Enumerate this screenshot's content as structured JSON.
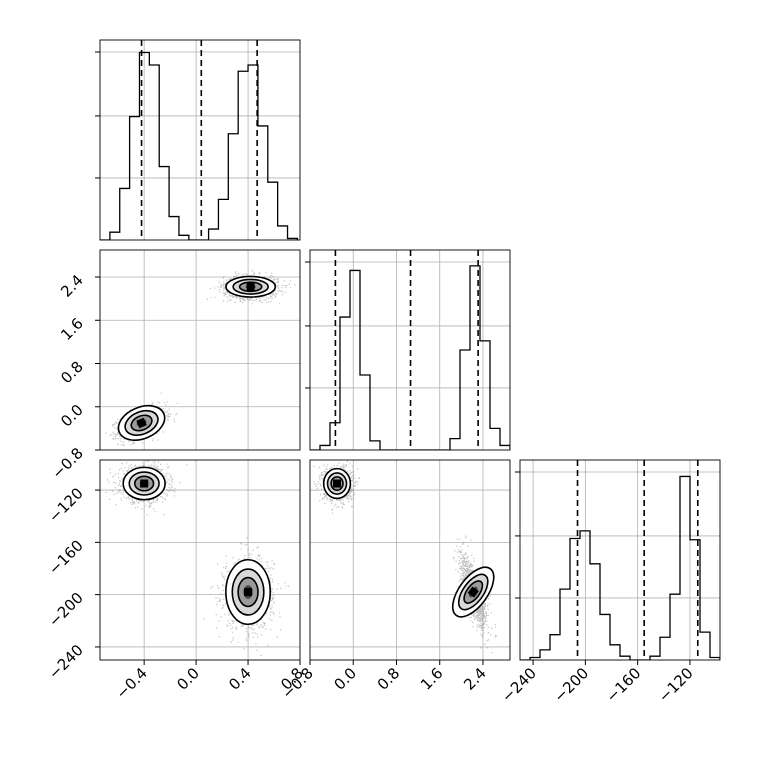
{
  "chart_data": {
    "type": "corner",
    "parameters": [
      {
        "ticks": [
          -0.4,
          0.0,
          0.4,
          0.8
        ],
        "tick_labels": [
          "−0.4",
          "0.0",
          "0.4",
          "0.8"
        ],
        "range": [
          -0.74,
          0.8
        ]
      },
      {
        "ticks": [
          -0.8,
          0.0,
          0.8,
          1.6,
          2.4
        ],
        "tick_labels": [
          "−0.8",
          "0.0",
          "0.8",
          "1.6",
          "2.4"
        ],
        "range": [
          -0.8,
          2.9
        ]
      },
      {
        "ticks": [
          -240,
          -200,
          -160,
          -120
        ],
        "tick_labels": [
          "−240",
          "−200",
          "−160",
          "−120"
        ],
        "range": [
          -250,
          -97
        ]
      }
    ],
    "histograms": [
      {
        "param": 0,
        "edges": [
          -0.74,
          -0.664,
          -0.588,
          -0.512,
          -0.436,
          -0.36,
          -0.284,
          -0.208,
          -0.132,
          -0.056,
          0.02,
          0.096,
          0.172,
          0.248,
          0.324,
          0.4,
          0.476,
          0.552,
          0.628,
          0.704,
          0.78
        ],
        "counts": [
          0,
          5,
          33,
          79,
          120,
          112,
          47,
          15,
          3,
          0,
          0,
          7,
          26,
          68,
          108,
          112,
          73,
          37,
          9,
          1
        ],
        "quantiles": [
          -0.42,
          0.04,
          0.47
        ],
        "ymax": 128
      },
      {
        "param": 1,
        "edges": [
          -0.8,
          -0.615,
          -0.43,
          -0.245,
          -0.06,
          0.125,
          0.31,
          0.495,
          0.68,
          0.865,
          1.05,
          1.235,
          1.42,
          1.605,
          1.79,
          1.975,
          2.16,
          2.345,
          2.53,
          2.715,
          2.9
        ],
        "counts": [
          0,
          4,
          24,
          117,
          158,
          66,
          8,
          0,
          0,
          0,
          0,
          0,
          0,
          0,
          10,
          88,
          162,
          96,
          19,
          4
        ],
        "quantiles": [
          -0.33,
          1.06,
          2.31
        ],
        "ymax": 176
      },
      {
        "param": 2,
        "edges": [
          -250,
          -242.35,
          -234.7,
          -227.05,
          -219.4,
          -211.75,
          -204.1,
          -196.45,
          -188.8,
          -181.15,
          -173.5,
          -165.85,
          -158.2,
          -150.55,
          -142.9,
          -135.25,
          -127.6,
          -119.95,
          -112.3,
          -104.65,
          -97
        ],
        "counts": [
          0,
          2,
          8,
          20,
          56,
          96,
          102,
          76,
          36,
          12,
          3,
          0,
          0,
          3,
          18,
          52,
          145,
          95,
          22,
          2
        ],
        "quantiles": [
          -206,
          -155,
          -114
        ],
        "ymax": 158
      }
    ],
    "density_2d": [
      {
        "x_param": 0,
        "y_param": 1,
        "modes": [
          {
            "center": [
              -0.42,
              -0.3
            ],
            "sigma": [
              0.085,
              0.14
            ],
            "rho": 0.45,
            "n": 1100
          },
          {
            "center": [
              0.42,
              2.22
            ],
            "sigma": [
              0.1,
              0.1
            ],
            "rho": 0.0,
            "n": 1100
          }
        ]
      },
      {
        "x_param": 0,
        "y_param": 2,
        "modes": [
          {
            "center": [
              -0.4,
              -115
            ],
            "sigma": [
              0.085,
              6.5
            ],
            "rho": 0.0,
            "n": 1100
          },
          {
            "center": [
              0.4,
              -198
            ],
            "sigma": [
              0.09,
              13
            ],
            "rho": 0.0,
            "n": 1100
          }
        ]
      },
      {
        "x_param": 1,
        "y_param": 2,
        "modes": [
          {
            "center": [
              -0.3,
              -115
            ],
            "sigma": [
              0.13,
              6.0
            ],
            "rho": 0.0,
            "n": 1100
          },
          {
            "center": [
              2.22,
              -198
            ],
            "sigma": [
              0.12,
              13
            ],
            "rho": -0.72,
            "n": 1100
          }
        ]
      }
    ],
    "grid": true
  }
}
